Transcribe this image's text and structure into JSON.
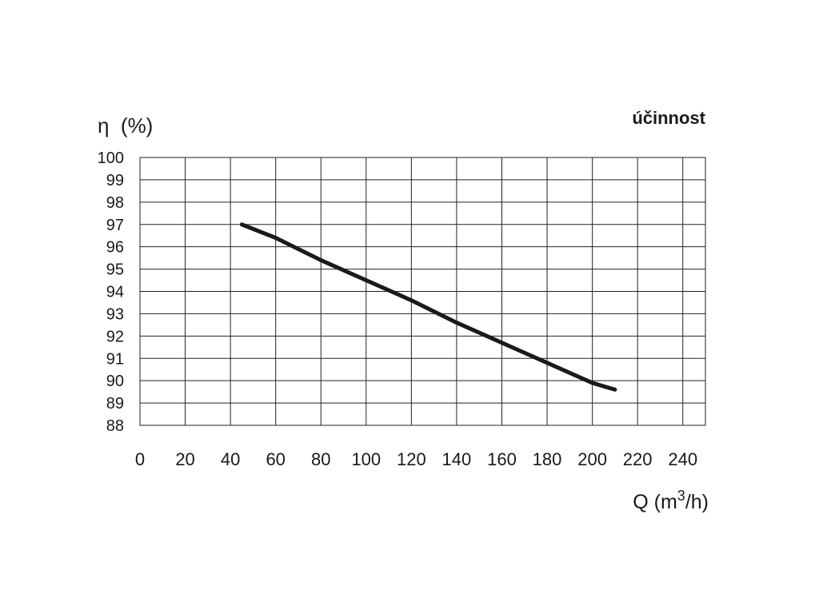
{
  "chart_data": {
    "type": "line",
    "title": "účinnost",
    "y_label": "η  (%)",
    "x_label": [
      "Q (m",
      "3",
      "/h)"
    ],
    "x": [
      45,
      60,
      80,
      100,
      120,
      140,
      160,
      180,
      200,
      210
    ],
    "values": [
      97,
      96.4,
      95.4,
      94.5,
      93.6,
      92.6,
      91.7,
      90.8,
      89.9,
      89.6
    ],
    "color": "#1a1a1a",
    "xlim": [
      0,
      250
    ],
    "xticks": [
      0,
      20,
      40,
      60,
      80,
      100,
      120,
      140,
      160,
      180,
      200,
      220,
      240
    ],
    "ylim": [
      88,
      100
    ],
    "yticks": [
      88,
      89,
      90,
      91,
      92,
      93,
      94,
      95,
      96,
      97,
      98,
      99,
      100
    ],
    "grid": true
  }
}
